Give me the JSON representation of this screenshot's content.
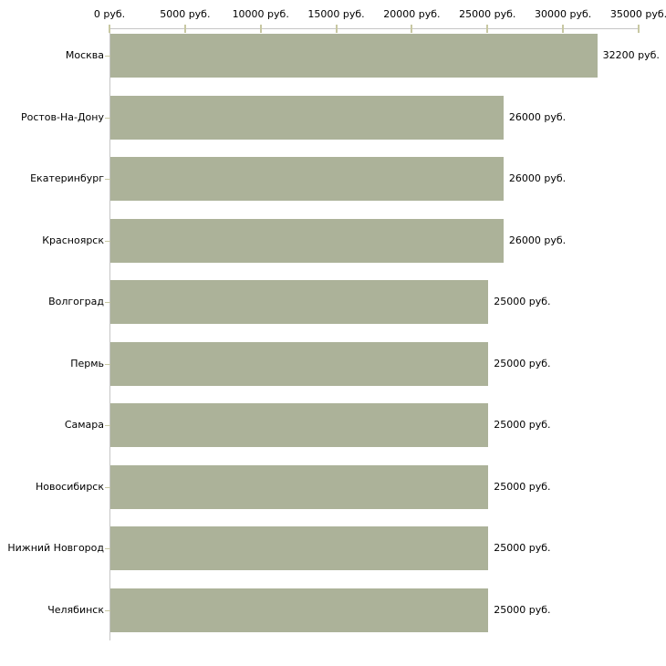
{
  "chart_data": {
    "type": "bar",
    "orientation": "horizontal",
    "categories": [
      "Москва",
      "Ростов-На-Дону",
      "Екатеринбург",
      "Красноярск",
      "Волгоград",
      "Пермь",
      "Самара",
      "Новосибирск",
      "Нижний Новгород",
      "Челябинск"
    ],
    "values": [
      32200,
      26000,
      26000,
      26000,
      25000,
      25000,
      25000,
      25000,
      25000,
      25000
    ],
    "value_labels": [
      "32200 руб.",
      "26000 руб.",
      "26000 руб.",
      "26000 руб.",
      "25000 руб.",
      "25000 руб.",
      "25000 руб.",
      "25000 руб.",
      "25000 руб.",
      "25000 руб."
    ],
    "x_tick_values": [
      0,
      5000,
      10000,
      15000,
      20000,
      25000,
      30000,
      35000
    ],
    "x_tick_labels": [
      "0 руб.",
      "5000 руб.",
      "10000 руб.",
      "15000 руб.",
      "20000 руб.",
      "25000 руб.",
      "30000 руб.",
      "35000 руб."
    ],
    "xlim": [
      0,
      35000
    ],
    "grid": false,
    "legend_position": "none",
    "colors": {
      "bar": "#acb299",
      "axis_line": "#c6c6c6",
      "tick_mark": "#c8c8a2",
      "text": "#000000",
      "background": "#ffffff"
    }
  }
}
